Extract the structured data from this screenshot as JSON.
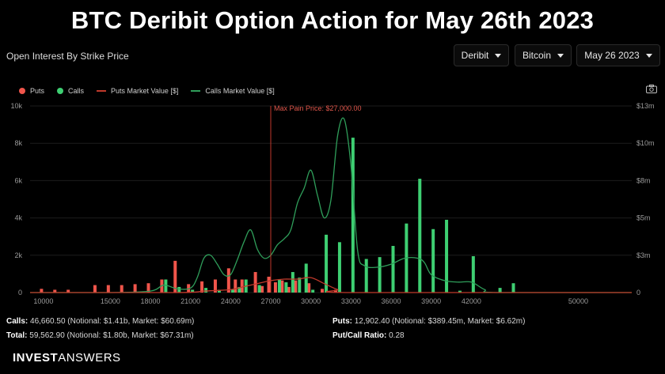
{
  "banner_title": "BTC Deribit Option Action for May 26th 2023",
  "panel_title": "Open Interest By Strike Price",
  "dropdowns": {
    "exchange": "Deribit",
    "asset": "Bitcoin",
    "expiry": "May 26 2023"
  },
  "legend": {
    "puts": "Puts",
    "calls": "Calls",
    "puts_mv": "Puts Market Value [$]",
    "calls_mv": "Calls Market Value [$]"
  },
  "colors": {
    "puts": "#f0554b",
    "calls": "#3ecf72",
    "puts_line": "#c0392b",
    "calls_line": "#2f9e5a",
    "max_pain": "#c0392b",
    "background": "#000000"
  },
  "stats": {
    "calls_label": "Calls:",
    "calls_value": "46,660.50 (Notional: $1.41b, Market: $60.69m)",
    "total_label": "Total:",
    "total_value": "59,562.90 (Notional: $1.80b, Market: $67.31m)",
    "puts_label": "Puts:",
    "puts_value": "12,902.40 (Notional: $389.45m, Market: $6.62m)",
    "ratio_label": "Put/Call Ratio:",
    "ratio_value": "0.28"
  },
  "brand": {
    "part1": "INVEST",
    "part2": "ANSWERS"
  },
  "chart_data": {
    "type": "bar",
    "title": "Open Interest By Strike Price",
    "x_domain": [
      9000,
      54000
    ],
    "y_left": {
      "ticks": [
        "0",
        "2k",
        "4k",
        "6k",
        "8k",
        "10k"
      ],
      "ylim": [
        0,
        10000
      ]
    },
    "y_right": {
      "ticks": [
        "0",
        "$3m",
        "$5m",
        "$8m",
        "$10m",
        "$13m"
      ],
      "ylim": [
        0,
        12500000
      ]
    },
    "x_ticks": [
      {
        "value": 10000,
        "label": "10000"
      },
      {
        "value": 15000,
        "label": "15000"
      },
      {
        "value": 18000,
        "label": "18000"
      },
      {
        "value": 21000,
        "label": "21000"
      },
      {
        "value": 24000,
        "label": "24000"
      },
      {
        "value": 27000,
        "label": "27000"
      },
      {
        "value": 30000,
        "label": "30000"
      },
      {
        "value": 33000,
        "label": "33000"
      },
      {
        "value": 36000,
        "label": "36000"
      },
      {
        "value": 39000,
        "label": "39000"
      },
      {
        "value": 42000,
        "label": "42000"
      },
      {
        "value": 50000,
        "label": "50000"
      }
    ],
    "max_pain": {
      "value": 27000,
      "label": "Max Pain Price: $27,000.00"
    },
    "puts": [
      [
        10000,
        200
      ],
      [
        11000,
        150
      ],
      [
        12000,
        150
      ],
      [
        14000,
        400
      ],
      [
        15000,
        400
      ],
      [
        16000,
        400
      ],
      [
        17000,
        450
      ],
      [
        18000,
        500
      ],
      [
        19000,
        700
      ],
      [
        20000,
        1700
      ],
      [
        21000,
        450
      ],
      [
        22000,
        600
      ],
      [
        23000,
        700
      ],
      [
        24000,
        1300
      ],
      [
        24500,
        700
      ],
      [
        25000,
        700
      ],
      [
        26000,
        1100
      ],
      [
        26500,
        350
      ],
      [
        27000,
        850
      ],
      [
        27500,
        550
      ],
      [
        28000,
        650
      ],
      [
        28500,
        300
      ],
      [
        29000,
        650
      ],
      [
        30000,
        500
      ],
      [
        31000,
        200
      ],
      [
        32000,
        150
      ]
    ],
    "calls": [
      [
        19000,
        700
      ],
      [
        20000,
        300
      ],
      [
        21000,
        150
      ],
      [
        22000,
        250
      ],
      [
        23000,
        150
      ],
      [
        24000,
        150
      ],
      [
        24500,
        300
      ],
      [
        25000,
        700
      ],
      [
        26000,
        400
      ],
      [
        27500,
        700
      ],
      [
        28000,
        550
      ],
      [
        28500,
        1100
      ],
      [
        29000,
        800
      ],
      [
        29500,
        1550
      ],
      [
        30000,
        150
      ],
      [
        31000,
        3100
      ],
      [
        32000,
        2700
      ],
      [
        33000,
        8300
      ],
      [
        34000,
        1800
      ],
      [
        35000,
        1900
      ],
      [
        36000,
        2500
      ],
      [
        37000,
        3700
      ],
      [
        38000,
        6100
      ],
      [
        39000,
        3400
      ],
      [
        40000,
        3900
      ],
      [
        41000,
        100
      ],
      [
        42000,
        1950
      ],
      [
        44000,
        250
      ],
      [
        45000,
        500
      ]
    ],
    "calls_market_value": [
      [
        9000,
        0
      ],
      [
        15000,
        0
      ],
      [
        18000,
        100000
      ],
      [
        19000,
        500000
      ],
      [
        20000,
        250000
      ],
      [
        21000,
        300000
      ],
      [
        21500,
        1000000
      ],
      [
        22000,
        2300000
      ],
      [
        22500,
        2500000
      ],
      [
        23000,
        1900000
      ],
      [
        23500,
        1200000
      ],
      [
        24000,
        1200000
      ],
      [
        24500,
        2200000
      ],
      [
        25000,
        3400000
      ],
      [
        25500,
        4200000
      ],
      [
        26000,
        2900000
      ],
      [
        26500,
        2300000
      ],
      [
        27000,
        2500000
      ],
      [
        27500,
        3200000
      ],
      [
        28000,
        3600000
      ],
      [
        28500,
        4200000
      ],
      [
        29000,
        6000000
      ],
      [
        29500,
        7000000
      ],
      [
        30000,
        8200000
      ],
      [
        30500,
        6500000
      ],
      [
        31000,
        5000000
      ],
      [
        31500,
        6200000
      ],
      [
        32000,
        10500000
      ],
      [
        32500,
        11600000
      ],
      [
        33000,
        8500000
      ],
      [
        33500,
        2800000
      ],
      [
        34000,
        1800000
      ],
      [
        35000,
        1700000
      ],
      [
        36000,
        1900000
      ],
      [
        37000,
        2300000
      ],
      [
        38000,
        2300000
      ],
      [
        38500,
        2000000
      ],
      [
        39000,
        1200000
      ],
      [
        40000,
        800000
      ],
      [
        41000,
        700000
      ],
      [
        42000,
        700000
      ],
      [
        43000,
        200000
      ],
      [
        44000,
        0
      ],
      [
        54000,
        0
      ]
    ],
    "puts_market_value": [
      [
        9000,
        0
      ],
      [
        20000,
        0
      ],
      [
        22000,
        100000
      ],
      [
        24000,
        200000
      ],
      [
        25000,
        400000
      ],
      [
        26000,
        600000
      ],
      [
        27000,
        800000
      ],
      [
        28000,
        900000
      ],
      [
        29000,
        900000
      ],
      [
        30000,
        1000000
      ],
      [
        31000,
        600000
      ],
      [
        32000,
        200000
      ],
      [
        33000,
        0
      ],
      [
        54000,
        0
      ]
    ]
  }
}
